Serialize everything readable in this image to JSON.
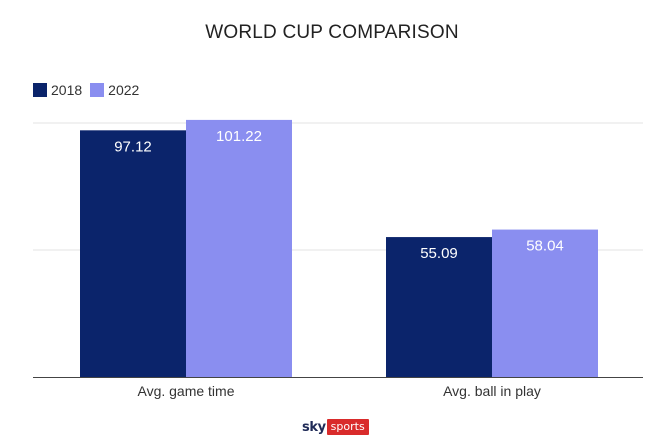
{
  "chart_data": {
    "type": "bar",
    "title": "WORLD CUP COMPARISON",
    "categories": [
      "Avg. game time",
      "Avg. ball in play"
    ],
    "series": [
      {
        "name": "2018",
        "values": [
          97.12,
          55.09
        ],
        "color": "#0b246b",
        "value_labels": [
          "97.12",
          "55.09"
        ]
      },
      {
        "name": "2022",
        "values": [
          101.22,
          58.04
        ],
        "color": "#8a8ef0",
        "value_labels": [
          "101.22",
          "58.04"
        ]
      }
    ],
    "xlabel": "",
    "ylabel": "",
    "ylim": [
      0,
      100
    ],
    "grid": true,
    "legend": "top-left"
  },
  "logo": {
    "brand": "sky",
    "product": "sports"
  }
}
